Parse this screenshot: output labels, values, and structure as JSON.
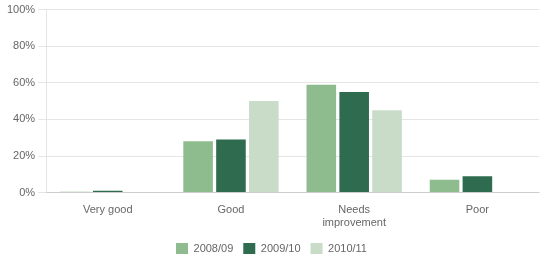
{
  "chart_data": {
    "type": "bar",
    "categories": [
      "Very good",
      "Good",
      "Needs\nimprovement",
      "Poor"
    ],
    "series": [
      {
        "name": "2008/09",
        "color": "#8fbc8f",
        "values": [
          0.005,
          0.28,
          0.59,
          0.07
        ]
      },
      {
        "name": "2009/10",
        "color": "#2e6b4f",
        "values": [
          0.01,
          0.29,
          0.55,
          0.09
        ]
      },
      {
        "name": "2010/11",
        "color": "#c8dcc8",
        "values": [
          0.0,
          0.5,
          0.45,
          0.0
        ]
      }
    ],
    "ylim": [
      0,
      1.0
    ],
    "yticks": [
      {
        "value": 0,
        "label": "0%"
      },
      {
        "value": 0.2,
        "label": "20%"
      },
      {
        "value": 0.4,
        "label": "40%"
      },
      {
        "value": 0.6,
        "label": "60%"
      },
      {
        "value": 0.8,
        "label": "80%"
      },
      {
        "value": 1.0,
        "label": "100%"
      }
    ],
    "grid": true,
    "legend": "bottom"
  }
}
